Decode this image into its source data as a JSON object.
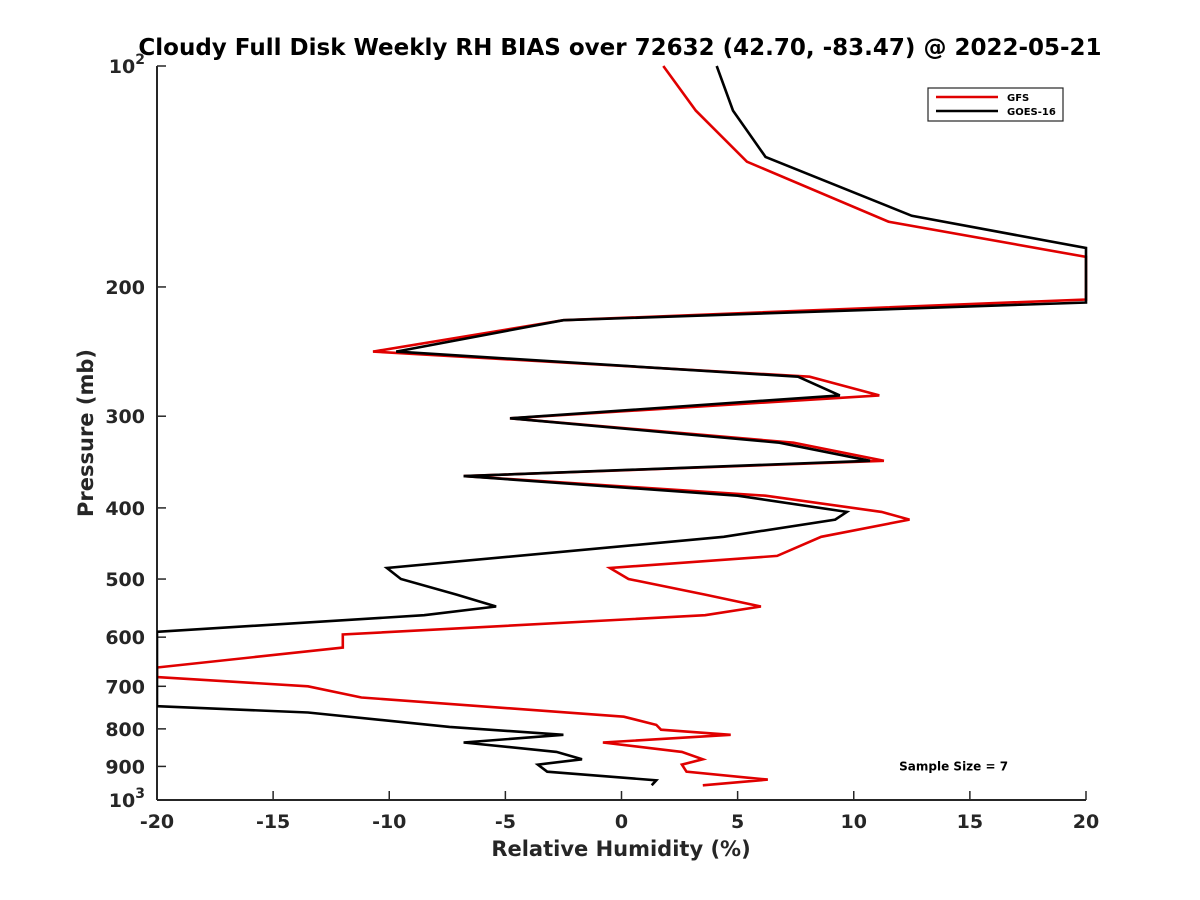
{
  "chart_data": {
    "type": "line",
    "title": "Cloudy Full Disk Weekly RH BIAS over 72632 (42.70, -83.47) @ 2022-05-21",
    "xlabel": "Relative Humidity (%)",
    "ylabel": "Pressure (mb)",
    "xlim": [
      -20,
      20
    ],
    "ylim": [
      1000,
      100
    ],
    "yscale": "log",
    "y_reversed": true,
    "grid": false,
    "legend_position": "top-right",
    "x_ticks": [
      "-20",
      "-15",
      "-10",
      "-5",
      "0",
      "5",
      "10",
      "15",
      "20"
    ],
    "y_ticks": [
      {
        "value": 100,
        "label": "10",
        "sup": "2"
      },
      {
        "value": 200,
        "label": "200"
      },
      {
        "value": 300,
        "label": "300"
      },
      {
        "value": 400,
        "label": "400"
      },
      {
        "value": 500,
        "label": "500"
      },
      {
        "value": 600,
        "label": "600"
      },
      {
        "value": 700,
        "label": "700"
      },
      {
        "value": 800,
        "label": "800"
      },
      {
        "value": 900,
        "label": "900"
      },
      {
        "value": 1000,
        "label": "10",
        "sup": "3"
      }
    ],
    "series": [
      {
        "name": "GFS",
        "color": "#e00000",
        "points": [
          [
            1.8,
            100
          ],
          [
            3.2,
            115
          ],
          [
            5.4,
            135
          ],
          [
            11.5,
            163
          ],
          [
            20,
            182
          ],
          [
            20,
            208
          ],
          [
            -2.5,
            222
          ],
          [
            -10.7,
            245
          ],
          [
            8.1,
            265
          ],
          [
            11.1,
            281
          ],
          [
            -4.8,
            302
          ],
          [
            7.4,
            326
          ],
          [
            11.3,
            345
          ],
          [
            -6.8,
            362
          ],
          [
            6.2,
            385
          ],
          [
            11.2,
            405
          ],
          [
            12.4,
            415
          ],
          [
            8.6,
            438
          ],
          [
            6.7,
            465
          ],
          [
            -0.5,
            483
          ],
          [
            0.3,
            500
          ],
          [
            3.6,
            525
          ],
          [
            6.0,
            545
          ],
          [
            3.6,
            560
          ],
          [
            -12.0,
            595
          ],
          [
            -12.0,
            620
          ],
          [
            -20,
            660
          ],
          [
            -20,
            680
          ],
          [
            -13.5,
            700
          ],
          [
            -11.2,
            725
          ],
          [
            0.1,
            770
          ],
          [
            1.5,
            790
          ],
          [
            1.7,
            802
          ],
          [
            4.7,
            815
          ],
          [
            -0.8,
            835
          ],
          [
            2.6,
            860
          ],
          [
            3.5,
            880
          ],
          [
            2.6,
            895
          ],
          [
            2.8,
            915
          ],
          [
            6.3,
            938
          ],
          [
            3.5,
            955
          ]
        ]
      },
      {
        "name": "GOES-16",
        "color": "#000000",
        "points": [
          [
            4.1,
            100
          ],
          [
            4.8,
            115
          ],
          [
            6.2,
            133
          ],
          [
            12.5,
            160
          ],
          [
            20,
            177
          ],
          [
            20,
            210
          ],
          [
            -2.5,
            222
          ],
          [
            -9.7,
            245
          ],
          [
            7.6,
            265
          ],
          [
            9.4,
            281
          ],
          [
            -4.8,
            302
          ],
          [
            6.8,
            326
          ],
          [
            10.7,
            345
          ],
          [
            -6.8,
            362
          ],
          [
            5.0,
            385
          ],
          [
            9.7,
            405
          ],
          [
            9.2,
            415
          ],
          [
            4.4,
            438
          ],
          [
            -10.1,
            483
          ],
          [
            -9.5,
            500
          ],
          [
            -7.1,
            525
          ],
          [
            -5.4,
            545
          ],
          [
            -8.5,
            560
          ],
          [
            -20,
            590
          ],
          [
            -20,
            745
          ],
          [
            -13.5,
            760
          ],
          [
            -7.4,
            795
          ],
          [
            -2.5,
            815
          ],
          [
            -6.8,
            835
          ],
          [
            -2.8,
            860
          ],
          [
            -1.7,
            880
          ],
          [
            -3.6,
            895
          ],
          [
            -3.2,
            915
          ],
          [
            1.5,
            940
          ],
          [
            1.3,
            955
          ]
        ]
      }
    ],
    "annotations": [
      {
        "text": "Sample Size = 7",
        "x": 14.3,
        "y": 900
      }
    ]
  }
}
